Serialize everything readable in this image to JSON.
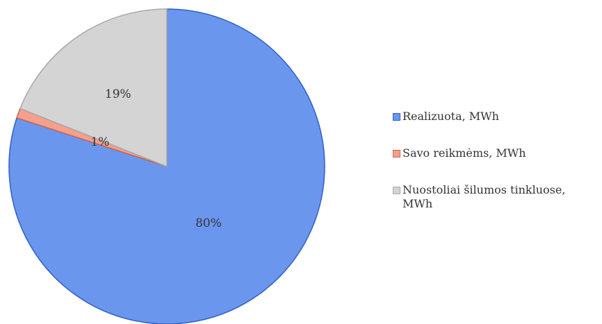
{
  "chart_data": {
    "type": "pie",
    "title": "",
    "categories": [
      "Realizuota, MWh",
      "Savo reikmėms, MWh",
      "Nuostoliai šilumos tinkluose, MWh"
    ],
    "values": [
      80,
      1,
      19
    ],
    "data_labels": [
      "80%",
      "1%",
      "19%"
    ],
    "colors": [
      "#6b96ee",
      "#f5a08c",
      "#d4d4d4"
    ],
    "edge_colors": [
      "#2f5fc4",
      "#c8644e",
      "#a8a8a8"
    ],
    "start": "top, clockwise",
    "legend_position": "right",
    "legend": [
      {
        "label": "Realizuota, MWh",
        "color": "#6b96ee",
        "edge": "#2f5fc4"
      },
      {
        "label": "Savo reikmėms, MWh",
        "color": "#f5a08c",
        "edge": "#c8644e"
      },
      {
        "label": "Nuostoliai šilumos tinkluose, MWh",
        "color": "#d4d4d4",
        "edge": "#a8a8a8"
      }
    ]
  }
}
